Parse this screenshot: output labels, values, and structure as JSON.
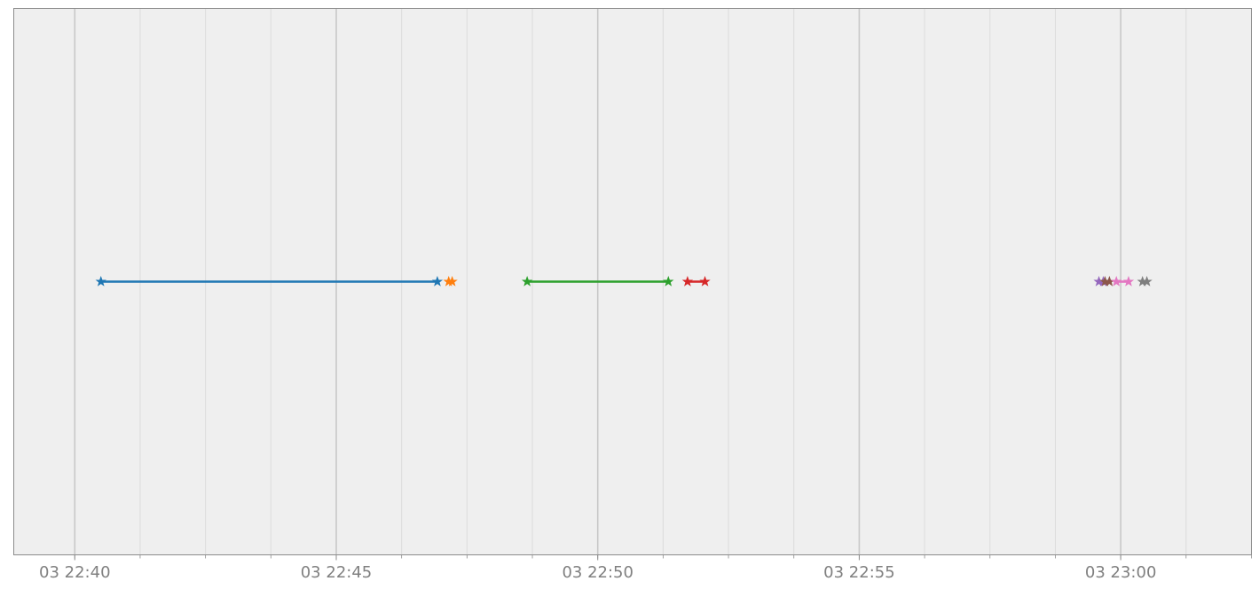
{
  "chart_data": {
    "type": "line",
    "title": "",
    "xlabel": "",
    "ylabel": "",
    "x_axis": {
      "kind": "datetime",
      "range": [
        "03 22:38:50",
        "03 23:02:30"
      ],
      "major_ticks": [
        {
          "time": "03 22:40:00",
          "label": "03 22:40"
        },
        {
          "time": "03 22:45:00",
          "label": "03 22:45"
        },
        {
          "time": "03 22:50:00",
          "label": "03 22:50"
        },
        {
          "time": "03 22:55:00",
          "label": "03 22:55"
        },
        {
          "time": "03 23:00:00",
          "label": "03 23:00"
        }
      ],
      "minor_tick_interval_minutes": 1.25
    },
    "y_axis": {
      "range": [
        -1,
        1
      ],
      "ticks_shown": false
    },
    "grid": true,
    "legend": "none",
    "background_color": "#efefef",
    "marker": "star",
    "series": [
      {
        "color": "#1f77b4",
        "points": [
          {
            "x": "03 22:40:30",
            "y": 0
          },
          {
            "x": "03 22:46:56",
            "y": 0
          }
        ]
      },
      {
        "color": "#ff7f0e",
        "points": [
          {
            "x": "03 22:47:09",
            "y": 0
          },
          {
            "x": "03 22:47:13",
            "y": 0
          }
        ]
      },
      {
        "color": "#2ca02c",
        "points": [
          {
            "x": "03 22:48:39",
            "y": 0
          },
          {
            "x": "03 22:51:21",
            "y": 0
          }
        ]
      },
      {
        "color": "#d62728",
        "points": [
          {
            "x": "03 22:51:43",
            "y": 0
          },
          {
            "x": "03 22:52:03",
            "y": 0
          }
        ]
      },
      {
        "color": "#9467bd",
        "points": [
          {
            "x": "03 22:59:35",
            "y": 0
          },
          {
            "x": "03 22:59:40",
            "y": 0
          }
        ]
      },
      {
        "color": "#8c564b",
        "points": [
          {
            "x": "03 22:59:42",
            "y": 0
          },
          {
            "x": "03 22:59:47",
            "y": 0
          }
        ]
      },
      {
        "color": "#e377c2",
        "points": [
          {
            "x": "03 22:59:55",
            "y": 0
          },
          {
            "x": "03 23:00:09",
            "y": 0
          }
        ]
      },
      {
        "color": "#7f7f7f",
        "points": [
          {
            "x": "03 23:00:25",
            "y": 0
          },
          {
            "x": "03 23:00:30",
            "y": 0
          }
        ]
      }
    ]
  }
}
